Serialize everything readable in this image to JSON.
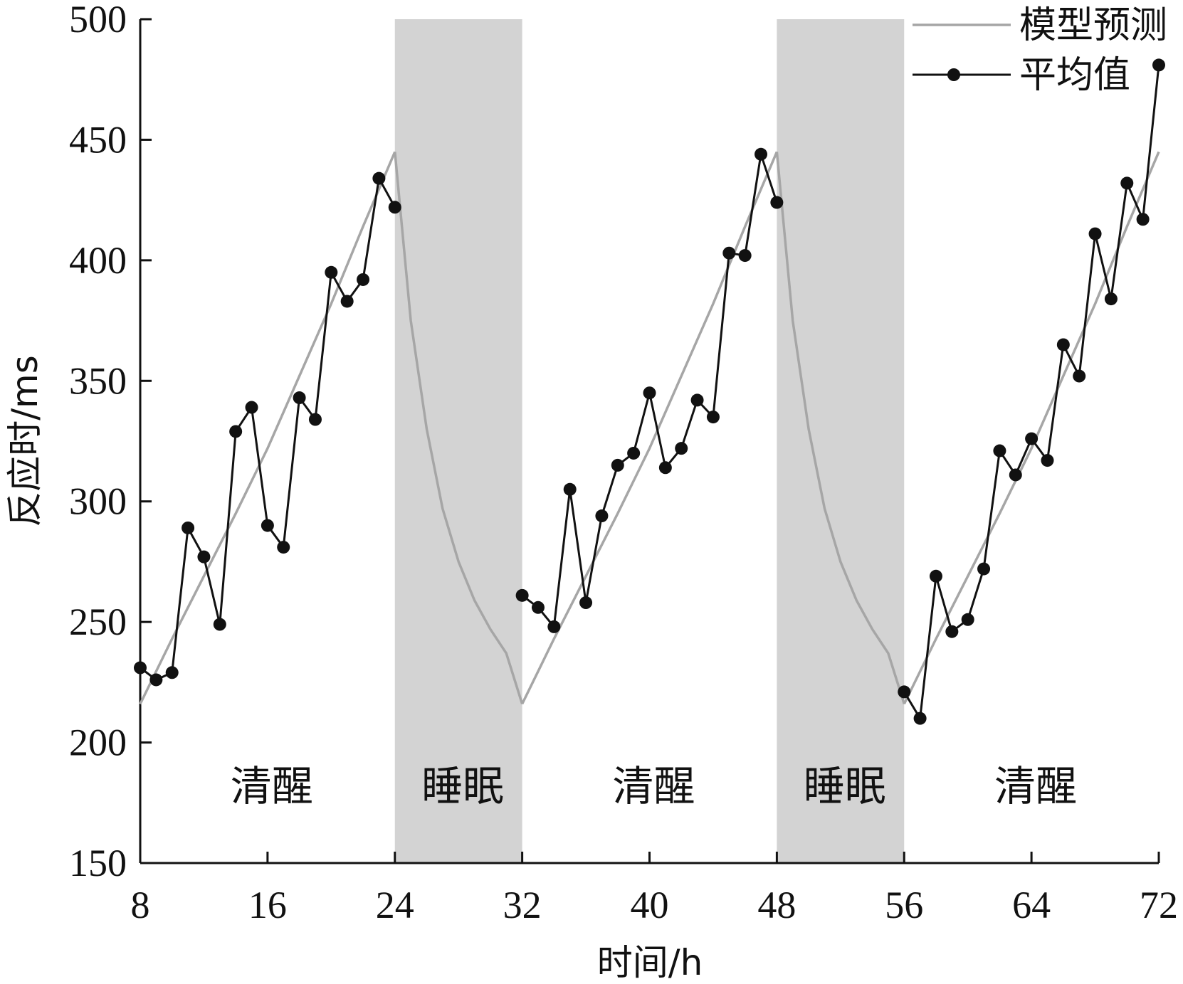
{
  "chart_data": {
    "type": "line",
    "title": "",
    "xlabel": "时间/h",
    "ylabel": "反应时/ms",
    "xlim": [
      8,
      72
    ],
    "ylim": [
      150,
      500
    ],
    "xticks": [
      8,
      16,
      24,
      32,
      40,
      48,
      56,
      64,
      72
    ],
    "yticks": [
      150,
      200,
      250,
      300,
      350,
      400,
      450,
      500
    ],
    "grid": false,
    "legend_position": "top-right",
    "colors": {
      "model": "#a6a6a6",
      "mean": "#111111",
      "sleep_band": "#d3d3d3",
      "axis": "#111111"
    },
    "regions": [
      {
        "label": "清醒",
        "start": 8,
        "end": 24,
        "shaded": false
      },
      {
        "label": "睡眠",
        "start": 24,
        "end": 32,
        "shaded": true
      },
      {
        "label": "清醒",
        "start": 32,
        "end": 48,
        "shaded": false
      },
      {
        "label": "睡眠",
        "start": 48,
        "end": 56,
        "shaded": true
      },
      {
        "label": "清醒",
        "start": 56,
        "end": 72,
        "shaded": false
      }
    ],
    "series": [
      {
        "name": "模型预测",
        "style": "line",
        "segments": [
          {
            "x": [
              8,
              10,
              12,
              14,
              16,
              18,
              20,
              22,
              24
            ],
            "y": [
              216,
              243,
              269,
              295,
              322,
              352,
              382,
              414,
              445
            ]
          },
          {
            "x": [
              24,
              25,
              26,
              27,
              28,
              29,
              30,
              31,
              32
            ],
            "y": [
              445,
              375,
              330,
              297,
              275,
              259,
              247,
              237,
              216
            ]
          },
          {
            "x": [
              32,
              34,
              36,
              38,
              40,
              42,
              44,
              46,
              48
            ],
            "y": [
              216,
              243,
              269,
              295,
              322,
              352,
              382,
              414,
              445
            ]
          },
          {
            "x": [
              48,
              49,
              50,
              51,
              52,
              53,
              54,
              55,
              56
            ],
            "y": [
              445,
              375,
              330,
              297,
              275,
              259,
              247,
              237,
              216
            ]
          },
          {
            "x": [
              56,
              58,
              60,
              62,
              64,
              66,
              68,
              70,
              72
            ],
            "y": [
              216,
              243,
              269,
              295,
              322,
              352,
              382,
              414,
              445
            ]
          }
        ]
      },
      {
        "name": "平均值",
        "style": "line-marker",
        "segments": [
          {
            "x": [
              8,
              9,
              10,
              11,
              12,
              13,
              14,
              15,
              16,
              17,
              18,
              19,
              20,
              21,
              22,
              23,
              24
            ],
            "y": [
              231,
              226,
              229,
              289,
              277,
              249,
              329,
              339,
              290,
              281,
              343,
              334,
              395,
              383,
              392,
              434,
              422
            ]
          },
          {
            "x": [
              32,
              33,
              34,
              35,
              36,
              37,
              38,
              39,
              40,
              41,
              42,
              43,
              44,
              45,
              46,
              47,
              48
            ],
            "y": [
              261,
              256,
              248,
              305,
              258,
              294,
              315,
              320,
              345,
              314,
              322,
              342,
              335,
              403,
              402,
              444,
              424
            ]
          },
          {
            "x": [
              56,
              57,
              58,
              59,
              60,
              61,
              62,
              63,
              64,
              65,
              66,
              67,
              68,
              69,
              70,
              71,
              72
            ],
            "y": [
              221,
              210,
              269,
              246,
              251,
              272,
              321,
              311,
              326,
              317,
              365,
              352,
              411,
              384,
              432,
              417,
              481
            ]
          }
        ]
      }
    ]
  }
}
